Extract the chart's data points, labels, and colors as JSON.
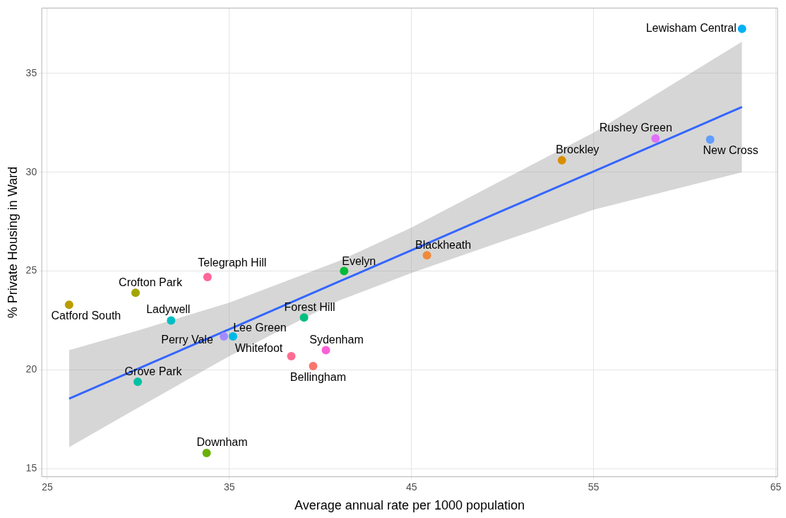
{
  "chart_data": {
    "type": "scatter",
    "xlabel": "Average annual rate per 1000 population",
    "ylabel": "% Private Housing in Ward",
    "xlim": [
      24.7,
      65.1
    ],
    "xticks": [
      25,
      35,
      45,
      55,
      65
    ],
    "ylim": [
      14.6,
      38.3
    ],
    "yticks": [
      15,
      20,
      25,
      30,
      35
    ],
    "grid": true,
    "legend": false,
    "series": [
      {
        "type": "line",
        "marker": "none",
        "color": "#3366ff",
        "x": [
          26.2,
          30,
          35,
          41,
          45,
          50,
          55,
          63.15
        ],
        "values": [
          18.55,
          20.07,
          22.06,
          24.46,
          26.05,
          28.05,
          30.04,
          33.3
        ],
        "lower": [
          16.1,
          18.1,
          20.7,
          23.5,
          24.9,
          26.5,
          28.1,
          30.0
        ],
        "upper": [
          21.0,
          22.0,
          23.4,
          25.5,
          27.2,
          29.6,
          32.0,
          36.6
        ]
      },
      {
        "marker": "circle",
        "x": [
          63.15,
          61.4,
          58.4,
          53.26,
          45.85,
          41.3,
          33.8,
          29.85,
          26.2,
          31.8,
          39.1,
          35.2,
          34.7,
          40.3,
          38.4,
          39.6,
          29.97,
          33.75
        ],
        "values": [
          37.25,
          31.65,
          31.7,
          30.6,
          25.8,
          25.0,
          24.7,
          23.9,
          23.3,
          22.5,
          22.65,
          21.7,
          21.7,
          21.0,
          20.7,
          20.2,
          19.4,
          15.8
        ],
        "colors": [
          "#00b0f6",
          "#619cff",
          "#df70f8",
          "#d89000",
          "#f08a3b",
          "#00ba38",
          "#ff6699",
          "#a3a500",
          "#bb9d00",
          "#00bfc4",
          "#00bf7d",
          "#00b8e5",
          "#a58aff",
          "#fb61d7",
          "#ff6c91",
          "#f8766d",
          "#00c1a3",
          "#6bb100"
        ]
      }
    ],
    "annotations": [
      {
        "text": "Lewisham Central",
        "x": 63.15,
        "y": 37.25
      },
      {
        "text": "New Cross",
        "x": 61.4,
        "y": 31.65
      },
      {
        "text": "Rushey Green",
        "x": 58.4,
        "y": 31.7
      },
      {
        "text": "Brockley",
        "x": 53.26,
        "y": 30.6
      },
      {
        "text": "Blackheath",
        "x": 45.85,
        "y": 25.8
      },
      {
        "text": "Evelyn",
        "x": 41.3,
        "y": 25.0
      },
      {
        "text": "Telegraph Hill",
        "x": 33.8,
        "y": 24.7
      },
      {
        "text": "Crofton Park",
        "x": 29.85,
        "y": 23.9
      },
      {
        "text": "Catford South",
        "x": 26.2,
        "y": 23.3
      },
      {
        "text": "Ladywell",
        "x": 31.8,
        "y": 22.5
      },
      {
        "text": "Forest Hill",
        "x": 39.1,
        "y": 22.65
      },
      {
        "text": "Lee Green",
        "x": 35.2,
        "y": 21.7
      },
      {
        "text": "Perry Vale",
        "x": 34.7,
        "y": 21.7
      },
      {
        "text": "Sydenham",
        "x": 40.3,
        "y": 21.0
      },
      {
        "text": "Whitefoot",
        "x": 38.4,
        "y": 20.7
      },
      {
        "text": "Bellingham",
        "x": 39.6,
        "y": 20.2
      },
      {
        "text": "Grove Park",
        "x": 29.97,
        "y": 19.4
      },
      {
        "text": "Downham",
        "x": 33.75,
        "y": 15.8
      }
    ]
  }
}
